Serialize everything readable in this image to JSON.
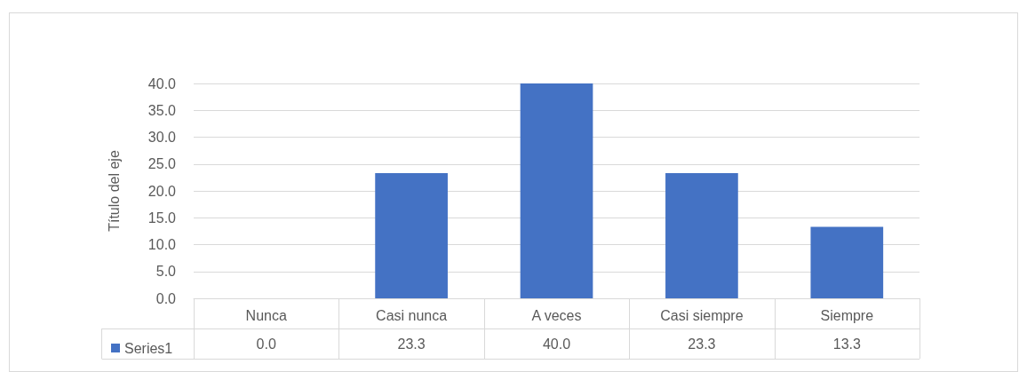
{
  "chart_data": {
    "type": "bar",
    "ylabel": "Título del eje",
    "categories": [
      "Nunca",
      "Casi nunca",
      "A veces",
      "Casi siempre",
      "Siempre"
    ],
    "series": [
      {
        "name": "Series1",
        "color": "#4472c4",
        "values": [
          0,
          23.3,
          40,
          23.3,
          13.3
        ],
        "value_labels": [
          "0.0",
          "23.3",
          "40.0",
          "23.3",
          "13.3"
        ]
      }
    ],
    "ylim": [
      0,
      40
    ],
    "yticks": [
      {
        "value": 0,
        "label": "0.0"
      },
      {
        "value": 5,
        "label": "5.0"
      },
      {
        "value": 10,
        "label": "10.0"
      },
      {
        "value": 15,
        "label": "15.0"
      },
      {
        "value": 20,
        "label": "20.0"
      },
      {
        "value": 25,
        "label": "25.0"
      },
      {
        "value": 30,
        "label": "30.0"
      },
      {
        "value": 35,
        "label": "35.0"
      },
      {
        "value": 40,
        "label": "40.0"
      }
    ],
    "grid": "y",
    "legend": "bottom left"
  }
}
